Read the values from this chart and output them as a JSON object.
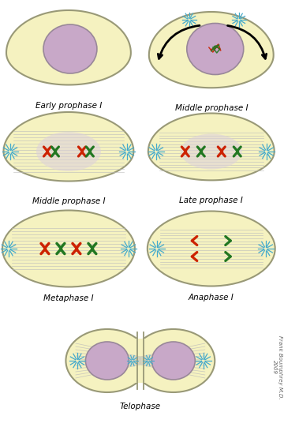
{
  "cell_fill": "#F5F2C0",
  "cell_edge": "#999977",
  "nucleus_fill": "#C8A8C8",
  "nucleus_edge": "#998899",
  "spindle_color": "#BBBBBB",
  "red_chrom": "#CC2200",
  "green_chrom": "#227722",
  "aster_color": "#44AACC",
  "labels": {
    "early": "Early prophase I",
    "middle1": "Middle prophase I",
    "middle2": "Middle prophase I",
    "late": "Late prophase I",
    "metaphase": "Metaphase I",
    "anaphase": "Anaphase I",
    "telophase": "Telophase"
  },
  "credit": "Frank Boumphrey M.D.\n2009",
  "label_fontsize": 7.5,
  "credit_fontsize": 5.0
}
